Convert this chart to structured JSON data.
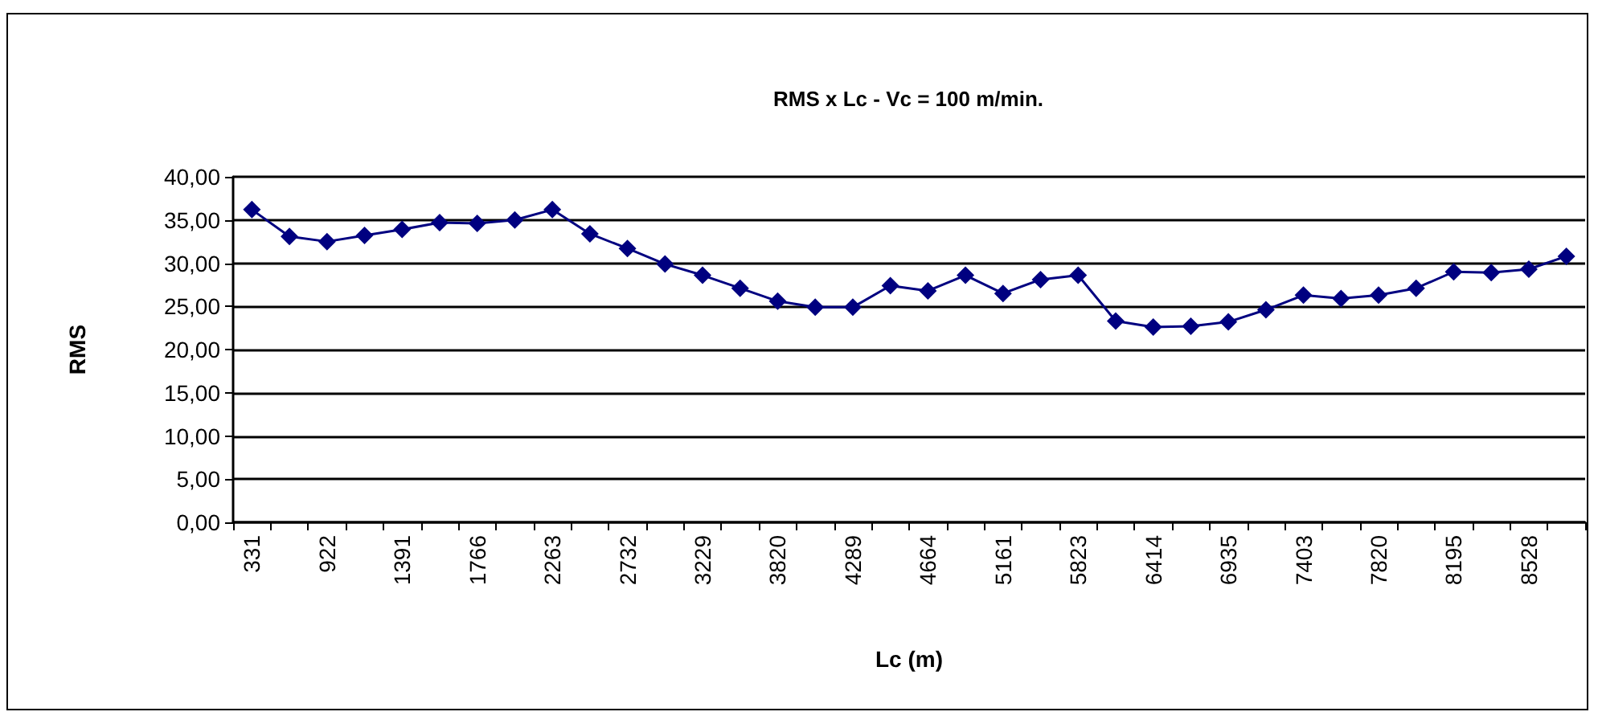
{
  "chart_data": {
    "type": "line",
    "title": "RMS x Lc - Vc = 100 m/min.",
    "xlabel": "Lc (m)",
    "ylabel": "RMS",
    "categories": [
      "331",
      null,
      "922",
      null,
      "1391",
      null,
      "1766",
      null,
      "2263",
      null,
      "2732",
      null,
      "3229",
      null,
      "3820",
      null,
      "4289",
      null,
      "4664",
      null,
      "5161",
      null,
      "5823",
      null,
      "6414",
      null,
      "6935",
      null,
      "7403",
      null,
      "7820",
      null,
      "8195",
      null,
      "8528",
      null
    ],
    "series": [
      {
        "color": "#000080",
        "values": [
          36.2,
          33.1,
          32.5,
          33.2,
          33.9,
          34.7,
          34.6,
          35.0,
          36.2,
          33.4,
          31.7,
          29.9,
          28.6,
          27.1,
          25.6,
          24.9,
          24.9,
          27.4,
          26.8,
          28.6,
          26.5,
          28.1,
          28.6,
          23.3,
          22.6,
          22.7,
          23.2,
          24.6,
          26.3,
          25.9,
          26.3,
          27.1,
          29.0,
          28.9,
          29.3,
          30.8
        ]
      }
    ],
    "ylim": [
      0,
      40
    ],
    "yticks": [
      {
        "value": 0,
        "label": "0,00"
      },
      {
        "value": 5,
        "label": "5,00"
      },
      {
        "value": 10,
        "label": "10,00"
      },
      {
        "value": 15,
        "label": "15,00"
      },
      {
        "value": 20,
        "label": "20,00"
      },
      {
        "value": 25,
        "label": "25,00"
      },
      {
        "value": 30,
        "label": "30,00"
      },
      {
        "value": 35,
        "label": "35,00"
      },
      {
        "value": 40,
        "label": "40,00"
      }
    ],
    "grid": "y",
    "marker": "diamond",
    "line_style": "solid"
  }
}
